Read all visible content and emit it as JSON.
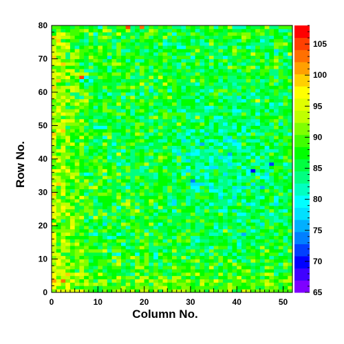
{
  "chart_data": {
    "type": "heatmap",
    "title": "",
    "xlabel": "Column No.",
    "ylabel": "Row No.",
    "xlim": [
      0,
      52
    ],
    "ylim": [
      0,
      80
    ],
    "x_ticks": [
      0,
      10,
      20,
      30,
      40,
      50
    ],
    "y_ticks": [
      0,
      10,
      20,
      30,
      40,
      50,
      60,
      70,
      80
    ],
    "colorbar": {
      "range": [
        65,
        108
      ],
      "ticks": [
        65,
        70,
        75,
        80,
        85,
        90,
        95,
        100,
        105
      ],
      "palette": [
        "#7f00ff",
        "#4000ff",
        "#0000ff",
        "#0040ff",
        "#0080ff",
        "#00b0ff",
        "#00e0ff",
        "#00ffff",
        "#00ffc0",
        "#00ff80",
        "#00ff40",
        "#00ff00",
        "#40ff00",
        "#80ff00",
        "#c0ff00",
        "#e0ff00",
        "#ffff00",
        "#ffd000",
        "#ffa000",
        "#ff7000",
        "#ff4000",
        "#ff0000"
      ]
    },
    "grid": false,
    "cells": {
      "columns": 52,
      "rows": 80,
      "description_of_values": "per-cell values roughly 78-100; higher (yellow/red) near the left edge and bottom, lower (cyan) around columns 28-48, rows 20-60",
      "sample_values": [
        {
          "col": 2,
          "row": 3,
          "value": 103
        },
        {
          "col": 6,
          "row": 64,
          "value": 105
        },
        {
          "col": 16,
          "row": 79,
          "value": 106
        },
        {
          "col": 19,
          "row": 79,
          "value": 104
        },
        {
          "col": 30,
          "row": 33,
          "value": 74
        },
        {
          "col": 43,
          "row": 36,
          "value": 70
        },
        {
          "col": 47,
          "row": 38,
          "value": 72
        },
        {
          "col": 41,
          "row": 17,
          "value": 76
        }
      ]
    }
  }
}
